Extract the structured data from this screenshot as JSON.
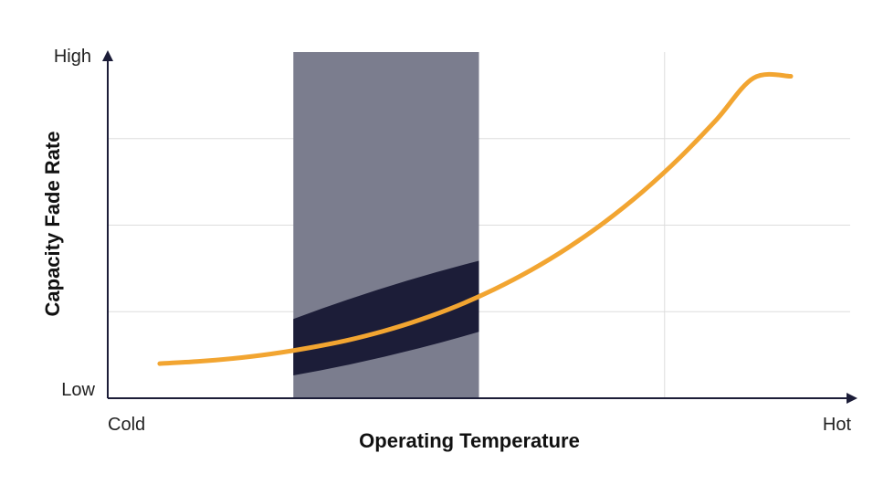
{
  "chart_data": {
    "type": "line",
    "title": "",
    "xlabel": "Operating Temperature",
    "ylabel": "Capacity Fade Rate",
    "x_tick_labels": {
      "start": "Cold",
      "end": "Hot"
    },
    "y_tick_labels": {
      "start": "Low",
      "end": "High"
    },
    "xlim": [
      0,
      100
    ],
    "ylim": [
      0,
      100
    ],
    "grid": true,
    "series": [
      {
        "x": [
          7,
          12,
          17,
          22,
          27,
          32,
          37,
          42,
          47,
          52,
          57,
          62,
          67,
          72,
          77,
          82,
          87,
          92
        ],
        "y": [
          10,
          10.6,
          11.5,
          12.8,
          14.5,
          16.6,
          19.3,
          22.6,
          26.6,
          31.4,
          37,
          43.5,
          51,
          59.6,
          69.4,
          80.5,
          92.5,
          93
        ]
      }
    ],
    "highlight_region": {
      "x": [
        25,
        50
      ]
    },
    "uncertainty_band": {
      "x": [
        25,
        50
      ],
      "lower": [
        6.6,
        19.2
      ],
      "upper": [
        22.9,
        39.7
      ]
    },
    "colors": {
      "line": "#F2A531",
      "region": "#7B7D8E",
      "band": "#1C1D38",
      "grid": "#DDDDDD",
      "axis": "#1C1D38"
    }
  }
}
